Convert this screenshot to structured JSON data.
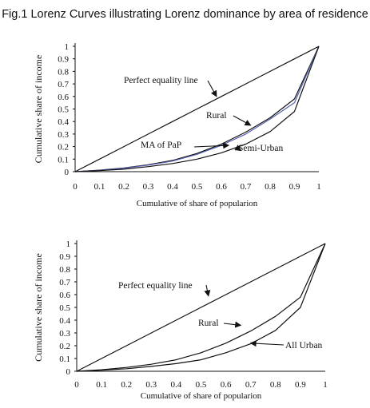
{
  "figure_title": "Fig.1 Lorenz Curves illustrating Lorenz dominance by area of residence",
  "chart_data": [
    {
      "type": "line",
      "title": "",
      "xlabel": "Cumulative of share of popularion",
      "ylabel": "Cumulative share of income",
      "xlim": [
        0,
        1
      ],
      "ylim": [
        0,
        1
      ],
      "xticks": [
        "0",
        "0.1",
        "0.2",
        "0.3",
        "0.4",
        "0.5",
        "0.6",
        "0.7",
        "0.8",
        "0.9",
        "1"
      ],
      "yticks": [
        "0",
        "0.1",
        "0.2",
        "0.3",
        "0.4",
        "0.5",
        "0.6",
        "0.7",
        "0.8",
        "0.9",
        "1"
      ],
      "grid": false,
      "x": [
        0,
        0.1,
        0.2,
        0.3,
        0.4,
        0.5,
        0.6,
        0.7,
        0.8,
        0.9,
        1
      ],
      "series": [
        {
          "name": "Perfect equality line",
          "color": "#111111",
          "values": [
            0,
            0.1,
            0.2,
            0.3,
            0.4,
            0.5,
            0.6,
            0.7,
            0.8,
            0.9,
            1
          ]
        },
        {
          "name": "Rural",
          "color": "#111111",
          "values": [
            0,
            0.012,
            0.03,
            0.055,
            0.09,
            0.145,
            0.22,
            0.315,
            0.43,
            0.58,
            1
          ]
        },
        {
          "name": "MA of PaP",
          "color": "#5560b0",
          "values": [
            0,
            0.011,
            0.028,
            0.052,
            0.085,
            0.138,
            0.21,
            0.3,
            0.42,
            0.55,
            1
          ]
        },
        {
          "name": "Semi-Urban",
          "color": "#111111",
          "values": [
            0,
            0.008,
            0.02,
            0.04,
            0.065,
            0.1,
            0.15,
            0.22,
            0.32,
            0.48,
            1
          ]
        }
      ],
      "annotations": [
        {
          "text": "Perfect equality line",
          "arrow_to": [
            0.58,
            0.6
          ]
        },
        {
          "text": "Rural",
          "arrow_to": [
            0.72,
            0.37
          ]
        },
        {
          "text": "MA of  PaP",
          "arrow_to": [
            0.63,
            0.21
          ]
        },
        {
          "text": "Semi-Urban",
          "arrow_to": [
            0.68,
            0.17
          ]
        }
      ]
    },
    {
      "type": "line",
      "title": "",
      "xlabel": "Cumulative of share of popularion",
      "ylabel": "Cumulative share of income",
      "xlim": [
        0,
        1
      ],
      "ylim": [
        0,
        1
      ],
      "xticks": [
        "0",
        "0.1",
        "0.2",
        "0.3",
        "0.4",
        "0.5",
        "0.6",
        "0.7",
        "0.8",
        "0.9",
        "1"
      ],
      "yticks": [
        "0",
        "0.1",
        "0.2",
        "0.3",
        "0.4",
        "0.5",
        "0.6",
        "0.7",
        "0.8",
        "0.9",
        "1"
      ],
      "grid": false,
      "x": [
        0,
        0.1,
        0.2,
        0.3,
        0.4,
        0.5,
        0.6,
        0.7,
        0.8,
        0.9,
        1
      ],
      "series": [
        {
          "name": "Perfect equality line",
          "color": "#111111",
          "values": [
            0,
            0.1,
            0.2,
            0.3,
            0.4,
            0.5,
            0.6,
            0.7,
            0.8,
            0.9,
            1
          ]
        },
        {
          "name": "Rural",
          "color": "#111111",
          "values": [
            0,
            0.012,
            0.03,
            0.055,
            0.09,
            0.145,
            0.22,
            0.315,
            0.43,
            0.58,
            1
          ]
        },
        {
          "name": "All Urban",
          "color": "#111111",
          "values": [
            0,
            0.008,
            0.02,
            0.038,
            0.06,
            0.09,
            0.145,
            0.215,
            0.32,
            0.5,
            1
          ]
        }
      ],
      "annotations": [
        {
          "text": "Perfect equality line",
          "arrow_to": [
            0.53,
            0.59
          ]
        },
        {
          "text": "Rural",
          "arrow_to": [
            0.66,
            0.36
          ]
        },
        {
          "text": "All Urban",
          "arrow_to": [
            0.7,
            0.22
          ]
        }
      ]
    }
  ]
}
